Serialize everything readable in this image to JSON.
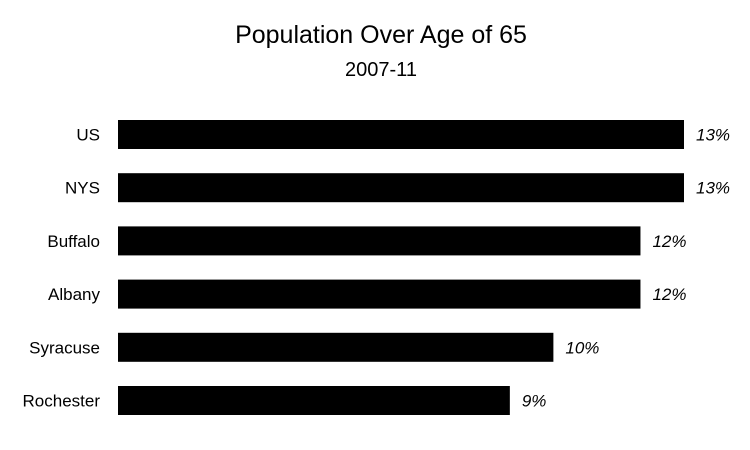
{
  "chart_data": {
    "type": "bar",
    "orientation": "horizontal",
    "title": "Population Over Age of 65",
    "subtitle": "2007-11",
    "categories": [
      "US",
      "NYS",
      "Buffalo",
      "Albany",
      "Syracuse",
      "Rochester"
    ],
    "values": [
      13,
      13,
      12,
      12,
      10,
      9
    ],
    "value_labels": [
      "13%",
      "13%",
      "12%",
      "12%",
      "10%",
      "9%"
    ],
    "unit": "%",
    "xlim": [
      0,
      13
    ],
    "bar_color": "#000000",
    "grid": false,
    "legend": "none"
  }
}
